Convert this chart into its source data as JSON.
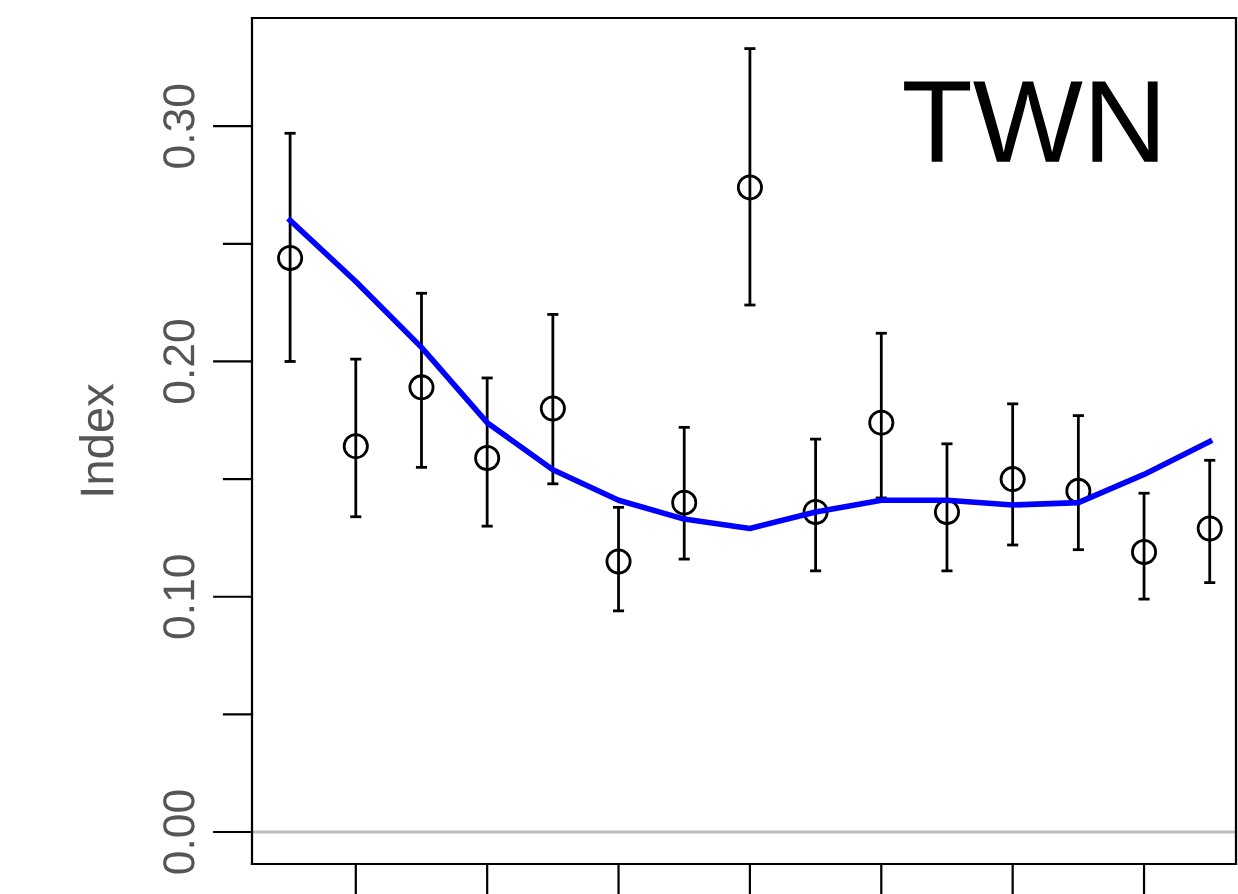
{
  "chart_data": {
    "type": "scatter",
    "title": "TWN",
    "ylabel": "Index",
    "categories": [
      null,
      null,
      null,
      null,
      null,
      null,
      null,
      null,
      null,
      null,
      null,
      null,
      null,
      null,
      null
    ],
    "ylim": [
      -0.0136,
      0.346
    ],
    "yticks": [
      {
        "value": 0,
        "label": "0.00"
      },
      {
        "value": 0.05,
        "label": null
      },
      {
        "value": 0.1,
        "label": "0.10"
      },
      {
        "value": 0.15,
        "label": null
      },
      {
        "value": 0.2,
        "label": "0.20"
      },
      {
        "value": 0.25,
        "label": null
      },
      {
        "value": 0.3,
        "label": "0.30"
      }
    ],
    "tick_labels": "y",
    "grid": false,
    "legend": false,
    "ref_lines": [
      {
        "axis": "y",
        "value": 0,
        "color": "#bebebe"
      }
    ],
    "series": [
      {
        "color": "#000000",
        "marker": "circle",
        "values": [
          0.244,
          0.164,
          0.189,
          0.159,
          0.18,
          0.115,
          0.14,
          0.274,
          0.136,
          0.174,
          0.136,
          0.15,
          0.145,
          0.119,
          0.129
        ],
        "errors": [
          [
            0.2,
            0.297
          ],
          [
            0.134,
            0.201
          ],
          [
            0.155,
            0.229
          ],
          [
            0.13,
            0.193
          ],
          [
            0.148,
            0.22
          ],
          [
            0.094,
            0.138
          ],
          [
            0.116,
            0.172
          ],
          [
            0.224,
            0.333
          ],
          [
            0.111,
            0.167
          ],
          [
            0.142,
            0.212
          ],
          [
            0.111,
            0.165
          ],
          [
            0.122,
            0.182
          ],
          [
            0.12,
            0.177
          ],
          [
            0.099,
            0.144
          ],
          [
            0.106,
            0.158
          ]
        ]
      },
      {
        "type": "line",
        "color": "#0000ff",
        "line_style": "solid",
        "marker": "none",
        "values": [
          0.26,
          0.234,
          0.206,
          0.174,
          0.154,
          0.141,
          0.133,
          0.129,
          0.136,
          0.141,
          0.141,
          0.139,
          0.14,
          0.152,
          0.166
        ]
      }
    ]
  }
}
